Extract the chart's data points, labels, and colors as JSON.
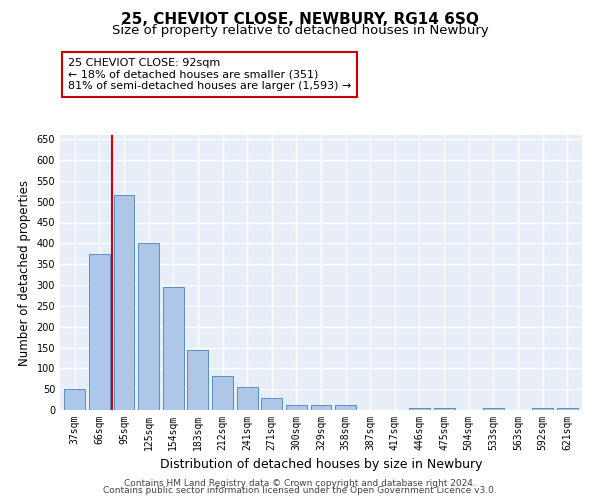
{
  "title": "25, CHEVIOT CLOSE, NEWBURY, RG14 6SQ",
  "subtitle": "Size of property relative to detached houses in Newbury",
  "xlabel": "Distribution of detached houses by size in Newbury",
  "ylabel": "Number of detached properties",
  "categories": [
    "37sqm",
    "66sqm",
    "95sqm",
    "125sqm",
    "154sqm",
    "183sqm",
    "212sqm",
    "241sqm",
    "271sqm",
    "300sqm",
    "329sqm",
    "358sqm",
    "387sqm",
    "417sqm",
    "446sqm",
    "475sqm",
    "504sqm",
    "533sqm",
    "563sqm",
    "592sqm",
    "621sqm"
  ],
  "values": [
    50,
    375,
    515,
    400,
    295,
    143,
    82,
    55,
    30,
    11,
    11,
    12,
    0,
    0,
    5,
    5,
    0,
    5,
    0,
    5,
    5
  ],
  "bar_color": "#aec6e8",
  "bar_edgecolor": "#5a8fc2",
  "vline_x_index": 2,
  "vline_color": "#cc0000",
  "annotation_line1": "25 CHEVIOT CLOSE: 92sqm",
  "annotation_line2": "← 18% of detached houses are smaller (351)",
  "annotation_line3": "81% of semi-detached houses are larger (1,593) →",
  "annotation_box_color": "#ffffff",
  "annotation_box_edgecolor": "#cc0000",
  "ylim": [
    0,
    660
  ],
  "yticks": [
    0,
    50,
    100,
    150,
    200,
    250,
    300,
    350,
    400,
    450,
    500,
    550,
    600,
    650
  ],
  "background_color": "#e8eef8",
  "grid_color": "#ffffff",
  "footer1": "Contains HM Land Registry data © Crown copyright and database right 2024.",
  "footer2": "Contains public sector information licensed under the Open Government Licence v3.0.",
  "title_fontsize": 11,
  "subtitle_fontsize": 9.5,
  "xlabel_fontsize": 9,
  "ylabel_fontsize": 8.5,
  "tick_fontsize": 7,
  "annotation_fontsize": 8,
  "footer_fontsize": 6.5
}
